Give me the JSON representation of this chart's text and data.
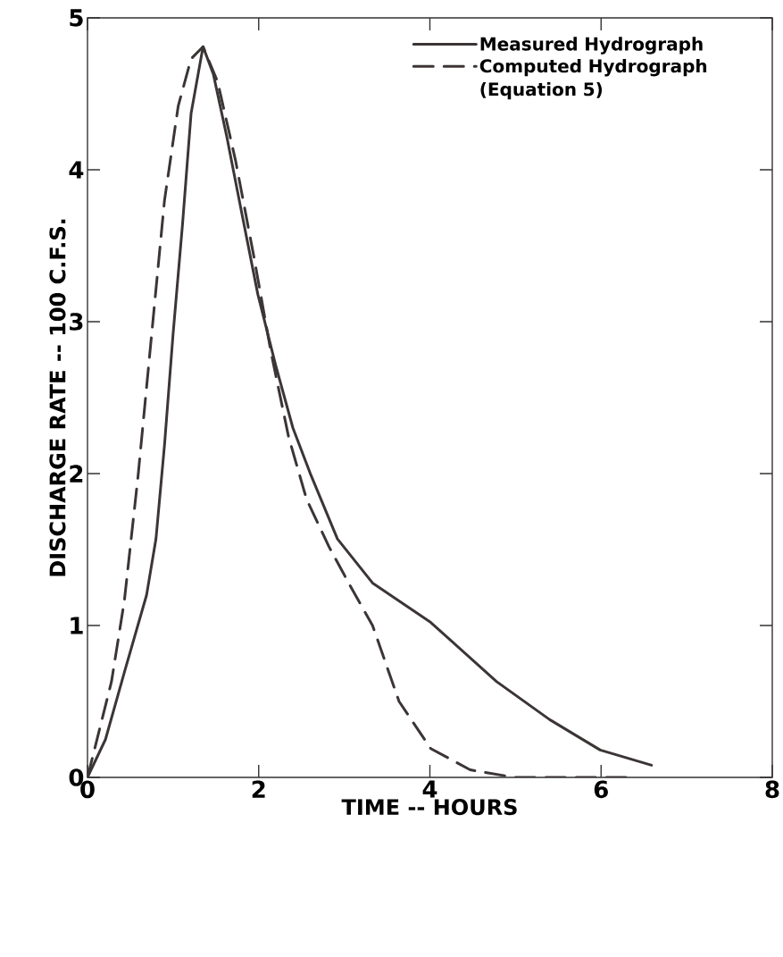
{
  "chart_data": {
    "type": "line",
    "xlabel": "TIME -- HOURS",
    "ylabel": "DISCHARGE RATE -- 100 C.F.S.",
    "xlim": [
      0,
      8
    ],
    "ylim": [
      0,
      5
    ],
    "xticks": [
      0,
      2,
      4,
      6,
      8
    ],
    "yticks": [
      0,
      1,
      2,
      3,
      4,
      5
    ],
    "grid": false,
    "legend": "top right",
    "marker": "none",
    "series": [
      {
        "name": "Measured Hydrograph",
        "color": "#3c3535",
        "line_style": "solid",
        "x": [
          0,
          0.21,
          0.43,
          0.69,
          0.8,
          0.9,
          1.0,
          1.11,
          1.21,
          1.35,
          1.47,
          1.63,
          1.79,
          1.99,
          2.2,
          2.4,
          2.61,
          2.92,
          3.33,
          4.01,
          4.78,
          5.4,
          5.99,
          6.59
        ],
        "values": [
          0,
          0.25,
          0.69,
          1.2,
          1.57,
          2.19,
          2.92,
          3.64,
          4.37,
          4.81,
          4.63,
          4.21,
          3.75,
          3.18,
          2.71,
          2.3,
          1.99,
          1.57,
          1.28,
          1.02,
          0.63,
          0.38,
          0.18,
          0.08
        ]
      },
      {
        "name": "Computed Hydrograph (Equation 5)",
        "color": "#3c3535",
        "line_style": "dashed",
        "x": [
          0,
          0.28,
          0.43,
          0.59,
          0.75,
          0.9,
          1.06,
          1.21,
          1.35,
          1.52,
          1.73,
          1.94,
          2.14,
          2.35,
          2.56,
          2.82,
          3.07,
          3.33,
          3.64,
          4.01,
          4.47,
          4.99,
          5.46,
          6.31
        ],
        "values": [
          0,
          0.63,
          1.16,
          1.98,
          2.92,
          3.8,
          4.42,
          4.73,
          4.81,
          4.58,
          4.06,
          3.44,
          2.81,
          2.24,
          1.83,
          1.52,
          1.26,
          1.0,
          0.5,
          0.19,
          0.05,
          0,
          0,
          0
        ]
      }
    ]
  }
}
